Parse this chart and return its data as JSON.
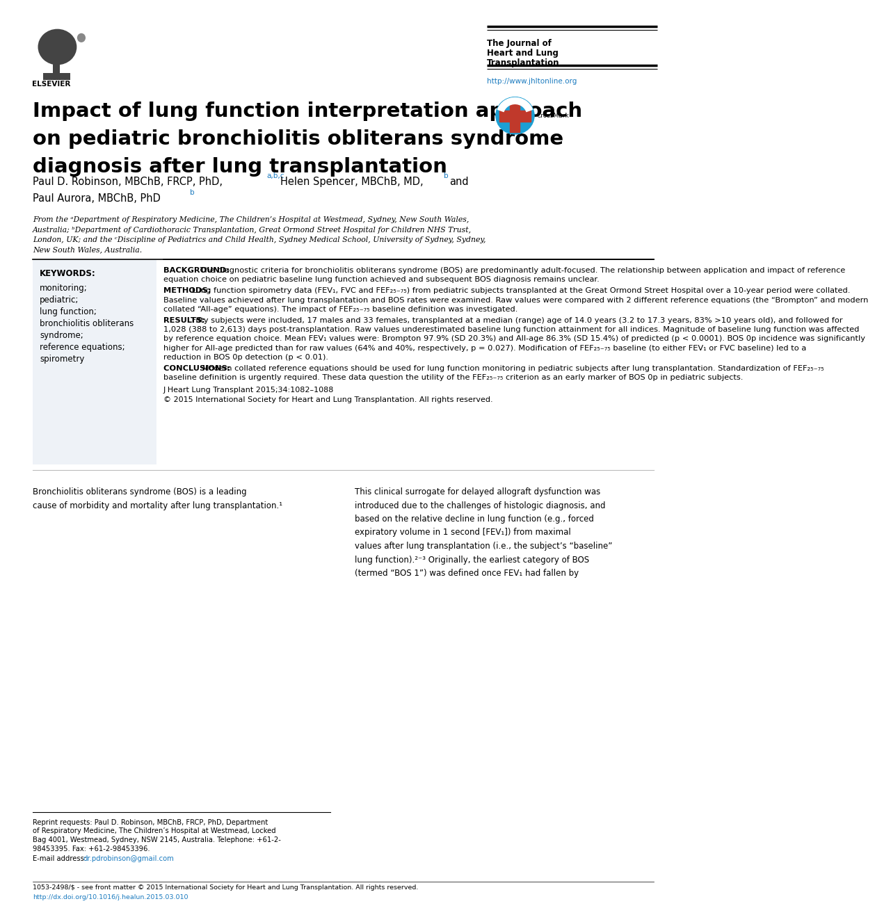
{
  "title_line1": "Impact of lung function interpretation approach",
  "title_line2": "on pediatric bronchiolitis obliterans syndrome",
  "title_line3": "diagnosis after lung transplantation",
  "journal_title1": "The Journal of",
  "journal_title2": "Heart and Lung",
  "journal_title3": "Transplantation",
  "journal_url": "http://www.jhltonline.org",
  "keywords_header": "KEYWORDS:",
  "keywords": [
    "monitoring;",
    "pediatric;",
    "lung function;",
    "bronchiolitis obliterans",
    "syndrome;",
    "reference equations;",
    "spirometry"
  ],
  "abstract_background_label": "BACKGROUND:",
  "abstract_background": "The diagnostic criteria for bronchiolitis obliterans syndrome (BOS) are predominantly adult-focused. The relationship between application and impact of reference equation choice on pediatric baseline lung function achieved and subsequent BOS diagnosis remains unclear.",
  "abstract_methods_label": "METHODS:",
  "abstract_methods": "Lung function spirometry data (FEV₁, FVC and FEF₂₅₋₇₅) from pediatric subjects transplanted at the Great Ormond Street Hospital over a 10-year period were collated. Baseline values achieved after lung transplantation and BOS rates were examined. Raw values were compared with 2 different reference equations (the “Brompton” and modern collated “All-age” equations). The impact of FEF₂₅₋₇₅ baseline definition was investigated.",
  "abstract_results_label": "RESULTS:",
  "abstract_results": "Fifty subjects were included, 17 males and 33 females, transplanted at a median (range) age of 14.0 years (3.2 to 17.3 years, 83% >10 years old), and followed for 1,028 (388 to 2,613) days post-transplantation. Raw values underestimated baseline lung function attainment for all indices. Magnitude of baseline lung function was affected by reference equation choice. Mean FEV₁ values were: Brompton 97.9% (SD 20.3%) and All-age 86.3% (SD 15.4%) of predicted (p < 0.0001). BOS 0p incidence was significantly higher for All-age predicted than for raw values (64% and 40%, respectively, p = 0.027). Modification of FEF₂₅₋₇₅ baseline (to either FEV₁ or FVC baseline) led to a reduction in BOS 0p detection (p < 0.01).",
  "abstract_conclusions_label": "CONCLUSIONS:",
  "abstract_conclusions": "Modern collated reference equations should be used for lung function monitoring in pediatric subjects after lung transplantation. Standardization of FEF₂₅₋₇₅ baseline definition is urgently required. These data question the utility of the FEF₂₅₋₇₅ criterion as an early marker of BOS 0p in pediatric subjects.",
  "journal_ref": "J Heart Lung Transplant 2015;34:1082–1088",
  "copyright": "© 2015 International Society for Heart and Lung Transplantation. All rights reserved.",
  "footer_line1": "1053-2498/$ - see front matter © 2015 International Society for Heart and Lung Transplantation. All rights reserved.",
  "footer_url": "http://dx.doi.org/10.1016/j.healun.2015.03.010",
  "bg_color": "#ffffff",
  "blue_color": "#1a7abf",
  "kw_bg_color": "#eef2f7"
}
